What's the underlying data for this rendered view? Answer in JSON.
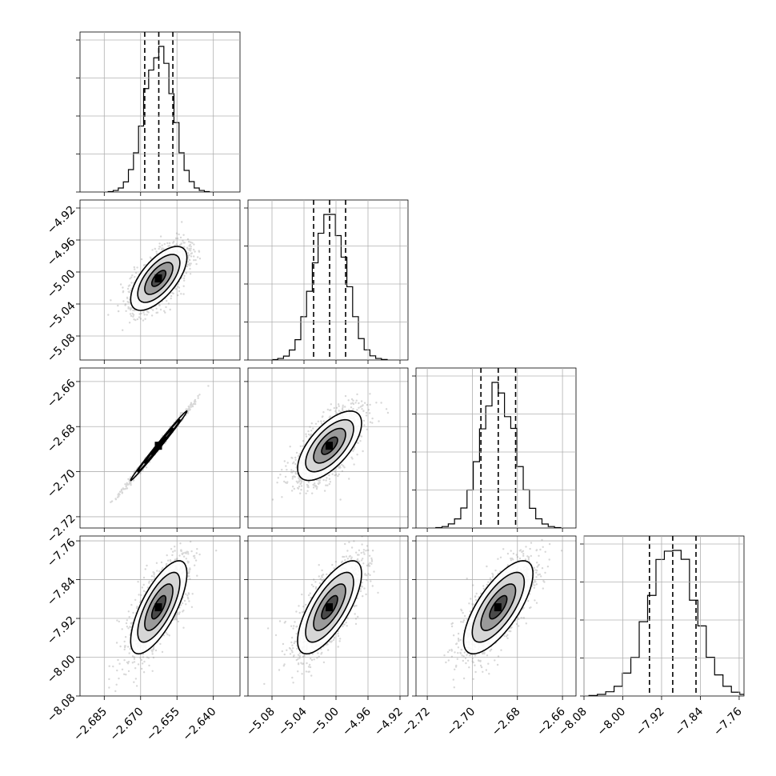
{
  "chart_data": {
    "type": "corner",
    "parameters": [
      {
        "index": 0,
        "range": [
          -2.695,
          -2.629
        ],
        "ticks": [
          -2.685,
          -2.67,
          -2.655,
          -2.64
        ],
        "tick_labels": [
          "−2.685",
          "−2.670",
          "−2.655",
          "−2.640"
        ],
        "mean": -2.6625,
        "sd": 0.0058,
        "quantiles": [
          -2.6683,
          -2.6625,
          -2.6567
        ]
      },
      {
        "index": 1,
        "range": [
          -5.11,
          -4.91
        ],
        "ticks": [
          -5.08,
          -5.04,
          -5.0,
          -4.96,
          -4.92
        ],
        "tick_labels": [
          "−5.08",
          "−5.04",
          "−5.00",
          "−4.96",
          "−4.92"
        ],
        "mean": -5.008,
        "sd": 0.02,
        "quantiles": [
          -5.028,
          -5.008,
          -4.988
        ]
      },
      {
        "index": 2,
        "range": [
          -2.725,
          -2.654
        ],
        "ticks": [
          -2.72,
          -2.7,
          -2.68,
          -2.66
        ],
        "tick_labels": [
          "−2.72",
          "−2.70",
          "−2.68",
          "−2.66"
        ],
        "mean": -2.6885,
        "sd": 0.0077,
        "quantiles": [
          -2.6962,
          -2.6885,
          -2.6808
        ]
      },
      {
        "index": 3,
        "range": [
          -8.08,
          -7.75
        ],
        "ticks": [
          -8.08,
          -8.0,
          -7.92,
          -7.84,
          -7.76
        ],
        "tick_labels": [
          "−8.08",
          "−8.00",
          "−7.92",
          "−7.84",
          "−7.76"
        ],
        "mean": -7.897,
        "sd": 0.048,
        "quantiles": [
          -7.945,
          -7.897,
          -7.849
        ]
      }
    ],
    "correlations": {
      "1-0": 0.65,
      "2-0": 0.995,
      "2-1": 0.65,
      "3-0": 0.72,
      "3-1": 0.72,
      "3-2": 0.72
    },
    "contour_levels_sigma": [
      0.5,
      1.0,
      1.5,
      2.0
    ],
    "histogram_bins": 20,
    "grid": true
  }
}
